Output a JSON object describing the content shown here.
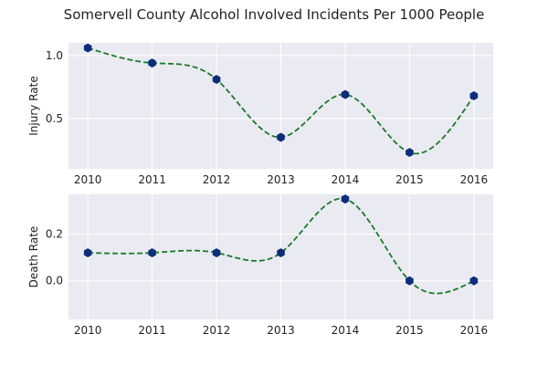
{
  "title": "Somervell County Alcohol Involved Incidents Per 1000 People",
  "chart_data": [
    {
      "type": "line",
      "ylabel": "Injury Rate",
      "x": [
        2010,
        2011,
        2012,
        2013,
        2014,
        2015,
        2016
      ],
      "values": [
        1.06,
        0.94,
        0.81,
        0.35,
        0.69,
        0.23,
        0.68
      ],
      "xlim": [
        2009.7,
        2016.3
      ],
      "ylim": [
        0.1,
        1.1
      ],
      "yticks": [
        0.5,
        1.0
      ],
      "ytick_labels": [
        "0.5",
        "1.0"
      ],
      "xtick_labels": [
        "2010",
        "2011",
        "2012",
        "2013",
        "2014",
        "2015",
        "2016"
      ],
      "line_color": "#1a7a2a",
      "line_style": "dashed, smooth",
      "marker_color": "#0b2e7a",
      "marker": "hexagon",
      "grid": true
    },
    {
      "type": "line",
      "ylabel": "Death Rate",
      "x": [
        2010,
        2011,
        2012,
        2013,
        2014,
        2015,
        2016
      ],
      "values": [
        0.12,
        0.12,
        0.12,
        0.12,
        0.35,
        0.0,
        0.0
      ],
      "xlim": [
        2009.7,
        2016.3
      ],
      "ylim": [
        -0.165,
        0.37
      ],
      "yticks": [
        0.0,
        0.2
      ],
      "ytick_labels": [
        "0.0",
        "0.2"
      ],
      "xtick_labels": [
        "2010",
        "2011",
        "2012",
        "2013",
        "2014",
        "2015",
        "2016"
      ],
      "line_color": "#1a7a2a",
      "line_style": "dashed, smooth",
      "marker_color": "#0b2e7a",
      "marker": "hexagon",
      "grid": true
    }
  ],
  "colors": {
    "plot_background": "#eaeaf2",
    "grid": "#ffffff"
  }
}
